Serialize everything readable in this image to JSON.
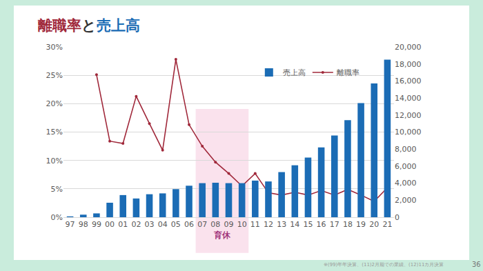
{
  "chart_data": {
    "type": "bar",
    "title": "離職率と売上高",
    "categories": [
      "97",
      "98",
      "99",
      "00",
      "01",
      "02",
      "03",
      "04",
      "05",
      "06",
      "07",
      "08",
      "09",
      "10",
      "11",
      "12",
      "13",
      "14",
      "15",
      "16",
      "17",
      "18",
      "19",
      "20",
      "21"
    ],
    "series": [
      {
        "name": "売上高",
        "type": "bar",
        "axis": "y2",
        "color": "#1b6cb5",
        "values": [
          100,
          300,
          450,
          1700,
          2600,
          2200,
          2700,
          2800,
          3300,
          3700,
          4000,
          4050,
          4000,
          4000,
          4300,
          4200,
          5300,
          6100,
          7000,
          8200,
          9600,
          11400,
          13400,
          15700,
          18500
        ]
      },
      {
        "name": "離職率",
        "type": "line",
        "color": "#a0283a",
        "marker": "circle",
        "line_style": "solid",
        "values": [
          null,
          null,
          25.1,
          13.4,
          13.0,
          21.3,
          16.5,
          11.8,
          27.8,
          16.3,
          12.5,
          9.7,
          7.7,
          5.5,
          7.7,
          4.3,
          3.9,
          4.4,
          3.9,
          4.7,
          3.9,
          4.9,
          3.9,
          2.8,
          5.2
        ]
      }
    ],
    "ylim": [
      0,
      30
    ],
    "yticks": [
      {
        "value": 0,
        "label": "0%"
      },
      {
        "value": 5,
        "label": "5%"
      },
      {
        "value": 10,
        "label": "10%"
      },
      {
        "value": 15,
        "label": "15%"
      },
      {
        "value": 20,
        "label": "20%"
      },
      {
        "value": 25,
        "label": "25%"
      },
      {
        "value": 30,
        "label": "30%"
      }
    ],
    "y2lim": [
      0,
      20000
    ],
    "y2ticks": [
      0,
      {
        "value": 2000,
        "label": "2,000"
      },
      {
        "value": 4000,
        "label": "4,000"
      },
      {
        "value": 6000,
        "label": "6,000"
      },
      {
        "value": 8000,
        "label": "8,000"
      },
      {
        "value": 10000,
        "label": "10,000"
      },
      {
        "value": 12000,
        "label": "12,000"
      },
      {
        "value": 14000,
        "label": "14,000"
      },
      {
        "value": 16000,
        "label": "16,000"
      },
      {
        "value": 18000,
        "label": "18,000"
      },
      {
        "value": 20000,
        "label": "20,000"
      }
    ],
    "grid": true,
    "legend": "top",
    "annotations": [
      {
        "text": "育休",
        "start": "07",
        "end": "10"
      }
    ],
    "footnote": "※(99)年年決算、(11)2月期での業績、(12)11カ月決算",
    "page": "36"
  }
}
